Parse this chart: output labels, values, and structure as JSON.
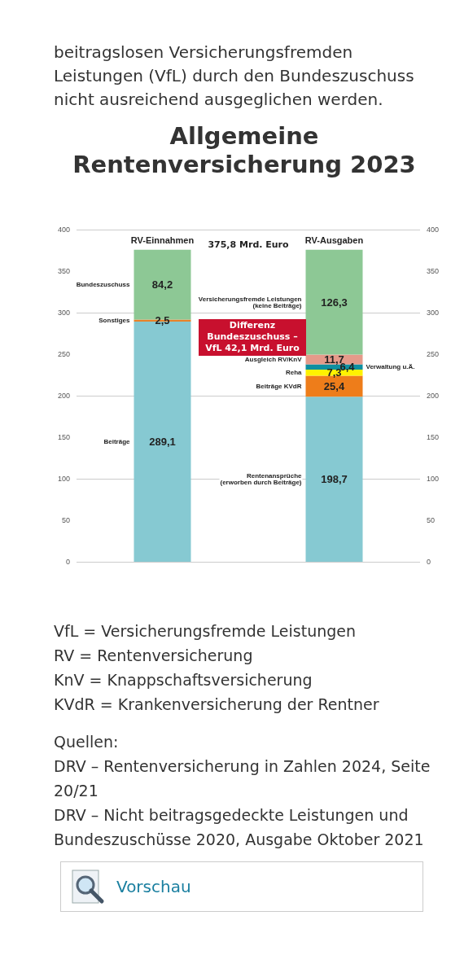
{
  "chart_data": {
    "type": "bar",
    "title": "Allgemeine Rentenversicherung 2023",
    "categories": [
      "RV-Einnahmen",
      "RV-Ausgaben"
    ],
    "stacked": true,
    "legend": false,
    "grid": "y",
    "ylim": [
      0,
      400
    ],
    "yticks": [
      0,
      50,
      100,
      150,
      200,
      250,
      300,
      350,
      400
    ],
    "y2lim": [
      0,
      400
    ],
    "y2ticks": [
      0,
      50,
      100,
      150,
      200,
      250,
      300,
      350,
      400
    ],
    "series": [
      {
        "name": "Beiträge",
        "color": "#86c9d2",
        "values": [
          289.1,
          null
        ],
        "value_labels": [
          "289,1",
          null
        ]
      },
      {
        "name": "Rentenansprüche (erworben durch Beiträge)",
        "color": "#86c9d2",
        "values": [
          null,
          198.7
        ],
        "value_labels": [
          null,
          "198,7"
        ]
      },
      {
        "name": "Beiträge KVdR",
        "color": "#ee7d1a",
        "values": [
          null,
          25.4
        ],
        "value_labels": [
          null,
          "25,4"
        ]
      },
      {
        "name": "Reha",
        "color": "#fff200",
        "values": [
          null,
          7.3
        ],
        "value_labels": [
          null,
          "7,3"
        ]
      },
      {
        "name": "Verwaltung u.Ä.",
        "color": "#0e8fa0",
        "values": [
          null,
          6.4
        ],
        "value_labels": [
          null,
          "6,4"
        ]
      },
      {
        "name": "Ausgleich RV/KnV",
        "color": "#e59a8a",
        "values": [
          null,
          11.7
        ],
        "value_labels": [
          null,
          "11,7"
        ]
      },
      {
        "name": "Sonstiges",
        "color": "#e8822a",
        "values": [
          2.5,
          null
        ],
        "value_labels": [
          "2,5",
          null
        ]
      },
      {
        "name": "Bundeszuschuss",
        "color": "#8dc895",
        "values": [
          84.2,
          null
        ],
        "value_labels": [
          "84,2",
          null
        ]
      },
      {
        "name": "Versicherungsfremde Leistungen (keine Beiträge)",
        "color": "#8dc895",
        "values": [
          null,
          126.3
        ],
        "value_labels": [
          null,
          "126,3"
        ]
      }
    ],
    "annotations": [
      "beitragslosen Versicherungsfremden Leistungen (VfL) durch den Bundeszuschuss nicht ausreichend ausgeglichen werden.",
      "375,8 Mrd. Euro",
      "Differenz Bundeszuschuss – VfL 42,1 Mrd. Euro",
      "VfL = Versicherungsfremde Leistungen",
      "RV = Rentenversicherung",
      "KnV = Knappschaftsversicherung",
      "KVdR = Krankenversicherung der Rentner",
      "Quellen:",
      "DRV – Rentenversicherung in Zahlen 2024, Seite 20/21",
      "DRV – Nicht beitragsgedeckte Leistungen und Bundeszuschüsse 2020, Ausgabe Oktober 2021",
      "Vorschau"
    ]
  }
}
